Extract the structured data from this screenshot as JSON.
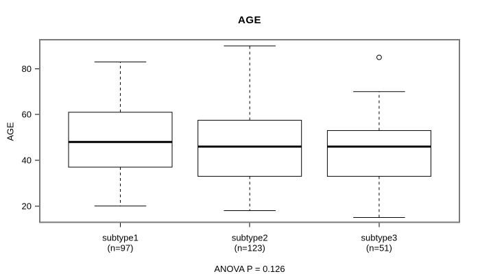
{
  "title": "AGE",
  "footer": {
    "anova_label": "ANOVA P = 0.126"
  },
  "chart_data": {
    "type": "boxplot",
    "title": "AGE",
    "xlabel": "",
    "ylabel": "AGE",
    "ylim": [
      12.9,
      92.7
    ],
    "yticks": [
      20,
      40,
      60,
      80
    ],
    "grid": false,
    "legend": "none",
    "annotation": "ANOVA P = 0.126",
    "groups": [
      {
        "label": "subtype1",
        "sublabel": "(n=97)",
        "n": 97,
        "whisker_low": 20,
        "q1": 37,
        "median": 48,
        "q3": 61,
        "whisker_high": 83,
        "outliers": []
      },
      {
        "label": "subtype2",
        "sublabel": "(n=123)",
        "n": 123,
        "whisker_low": 18,
        "q1": 33,
        "median": 46,
        "q3": 57.5,
        "whisker_high": 90,
        "outliers": []
      },
      {
        "label": "subtype3",
        "sublabel": "(n=51)",
        "n": 51,
        "whisker_low": 15,
        "q1": 33,
        "median": 46,
        "q3": 53,
        "whisker_high": 70,
        "outliers": [
          85
        ]
      }
    ],
    "colors": {
      "line": "#000000",
      "box_fill": "#ffffff",
      "plot_border": "#7a7a7a",
      "background": "#ffffff"
    }
  }
}
